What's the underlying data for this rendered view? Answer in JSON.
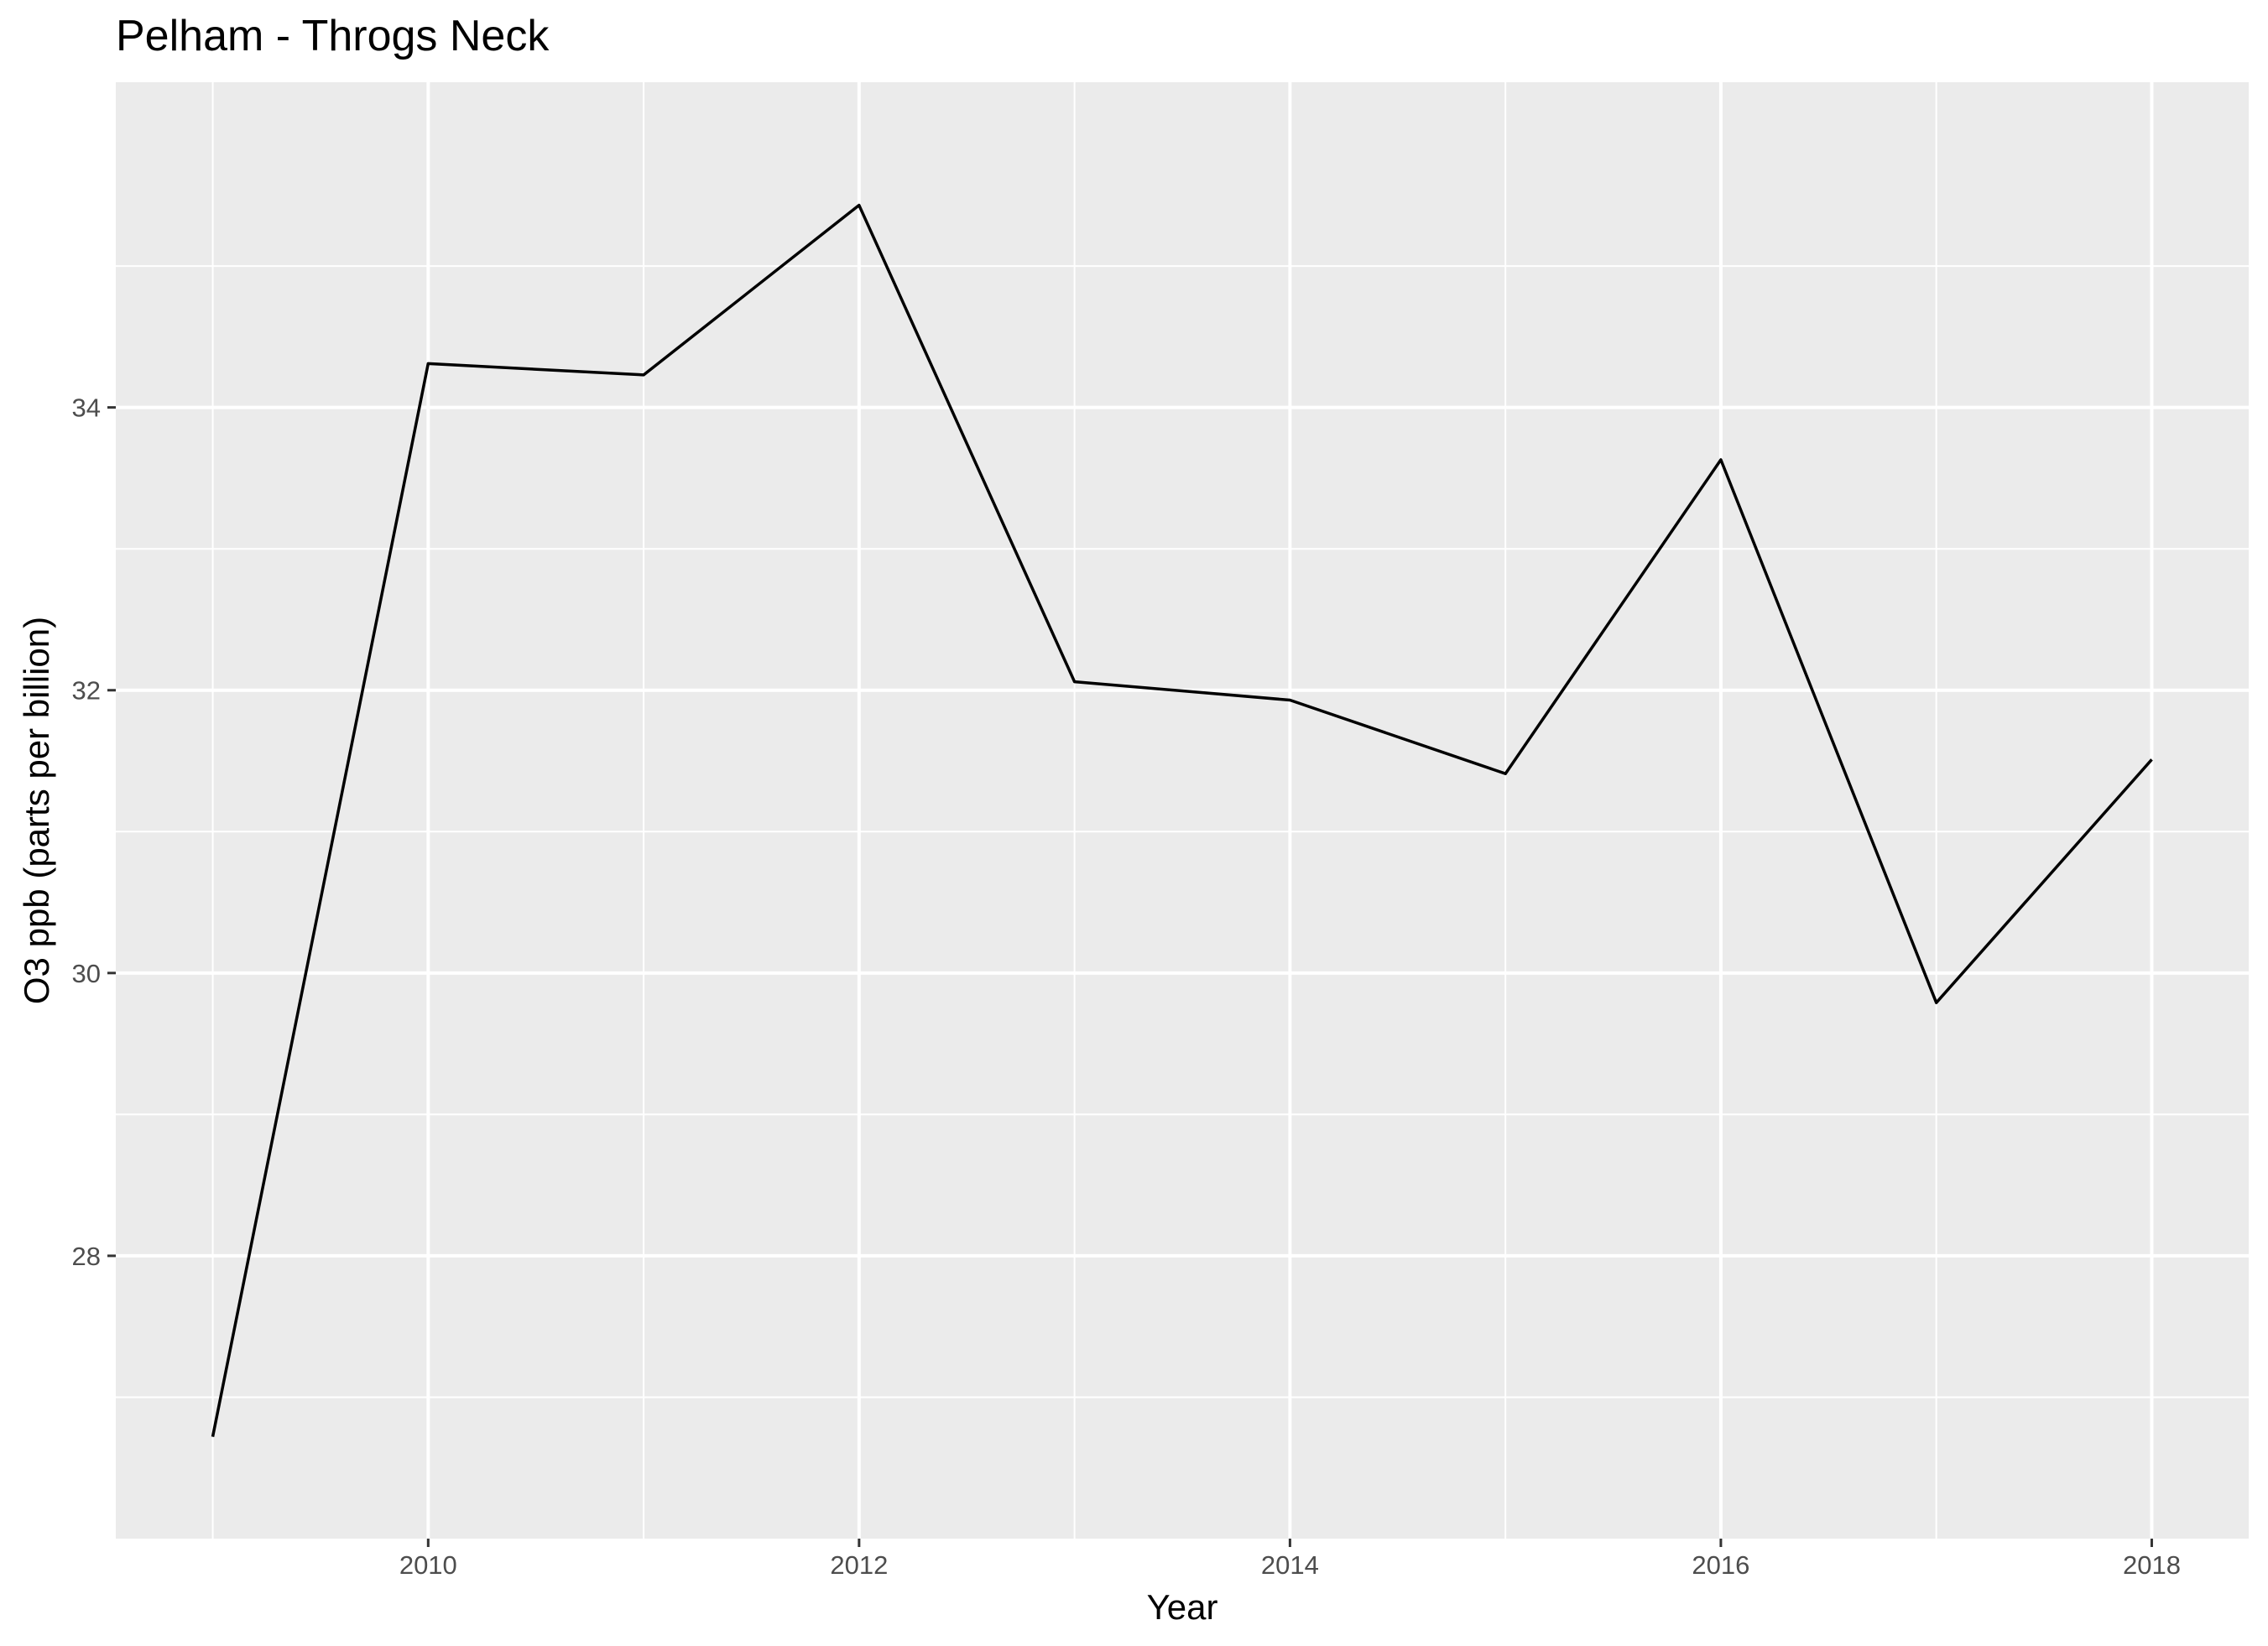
{
  "chart_data": {
    "type": "line",
    "title": "Pelham - Throgs Neck",
    "xlabel": "Year",
    "ylabel": "O3 ppb (parts per billion)",
    "x": [
      2009,
      2010,
      2011,
      2012,
      2013,
      2014,
      2015,
      2016,
      2017,
      2018
    ],
    "series": [
      {
        "values": [
          26.72,
          34.31,
          34.23,
          35.43,
          32.06,
          31.93,
          31.41,
          33.63,
          29.79,
          31.51
        ]
      }
    ],
    "xlim": [
      2008.55,
      2018.45
    ],
    "ylim": [
      26.0,
      36.3
    ],
    "x_ticks": [
      2010,
      2012,
      2014,
      2016,
      2018
    ],
    "x_minor": [
      2009,
      2011,
      2013,
      2015,
      2017
    ],
    "y_ticks": [
      28,
      30,
      32,
      34
    ],
    "y_minor": [
      27,
      29,
      31,
      33,
      35
    ],
    "grid": true,
    "legend": "none",
    "colors": {
      "panel": "#ebebeb",
      "grid": "#ffffff",
      "line": "#000000",
      "tick_text": "#4d4d4d",
      "tick_mark": "#333333"
    }
  }
}
